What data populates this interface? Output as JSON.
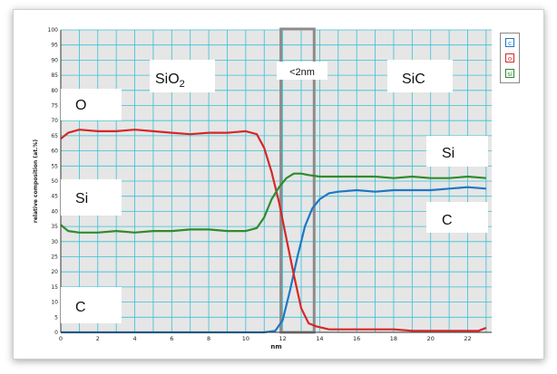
{
  "chart_data": {
    "type": "line",
    "xlabel": "nm",
    "ylabel": "relative composition (at.%)",
    "xlim": [
      0,
      23.3
    ],
    "ylim": [
      0,
      100
    ],
    "xticks": [
      "0",
      "2",
      "4",
      "6",
      "8",
      "10",
      "12",
      "14",
      "16",
      "18",
      "20",
      "22"
    ],
    "yticks": [
      "0",
      "5",
      "10",
      "15",
      "20",
      "25",
      "30",
      "35",
      "40",
      "45",
      "50",
      "55",
      "60",
      "65",
      "70",
      "75",
      "80",
      "85",
      "90",
      "95",
      "100"
    ],
    "grid": true,
    "legend_placement": "top-right, outside plot",
    "interface_region": {
      "x_range": [
        11.9,
        13.7
      ],
      "label": "<2nm"
    },
    "region_labels": [
      {
        "text": "SiO2",
        "base": "SiO",
        "sub": "2"
      },
      {
        "text": "SiC"
      }
    ],
    "annotations": [
      "O",
      "Si",
      "C",
      "Si",
      "C"
    ],
    "series": [
      {
        "name": "C",
        "color": "#1f77c4",
        "x": [
          0,
          1,
          2,
          3,
          4,
          5,
          6,
          7,
          8,
          9,
          10,
          11,
          11.6,
          12.0,
          12.4,
          12.8,
          13.2,
          13.6,
          14.0,
          14.5,
          15,
          16,
          17,
          18,
          19,
          20,
          21,
          22,
          23
        ],
        "y": [
          0,
          0,
          0,
          0,
          0,
          0,
          0,
          0,
          0,
          0,
          0,
          0,
          0.5,
          4,
          14,
          25,
          35,
          41,
          44,
          46,
          46.5,
          47,
          46.5,
          47,
          47,
          47,
          47.5,
          48,
          47.5
        ]
      },
      {
        "name": "O",
        "color": "#d62728",
        "x": [
          0,
          0.4,
          1,
          2,
          3,
          4,
          5,
          6,
          7,
          8,
          9,
          10,
          10.6,
          11.0,
          11.4,
          11.8,
          12.2,
          12.6,
          13.0,
          13.4,
          13.8,
          14.5,
          15,
          16,
          17,
          18,
          19,
          20,
          21,
          22,
          22.6,
          23
        ],
        "y": [
          64,
          66,
          67,
          66.5,
          66.5,
          67,
          66.5,
          66,
          65.5,
          66,
          66,
          66.5,
          65.5,
          61,
          53,
          43,
          31,
          19,
          8,
          3,
          2,
          1,
          1,
          1,
          1,
          1,
          0.5,
          0.5,
          0.5,
          0.5,
          0.5,
          1.5
        ]
      },
      {
        "name": "Si",
        "color": "#2e8b2e",
        "x": [
          0,
          0.4,
          1,
          2,
          3,
          4,
          5,
          6,
          7,
          8,
          9,
          10,
          10.6,
          11.0,
          11.4,
          11.8,
          12.2,
          12.6,
          13.0,
          13.4,
          14,
          15,
          16,
          17,
          18,
          19,
          20,
          21,
          22,
          23
        ],
        "y": [
          35.5,
          33.5,
          33,
          33,
          33.5,
          33,
          33.5,
          33.5,
          34,
          34,
          33.5,
          33.5,
          34.5,
          38,
          44,
          48,
          51,
          52.5,
          52.5,
          52,
          51.5,
          51.5,
          51.5,
          51.5,
          51,
          51.5,
          51,
          51,
          51.5,
          51
        ]
      }
    ]
  }
}
